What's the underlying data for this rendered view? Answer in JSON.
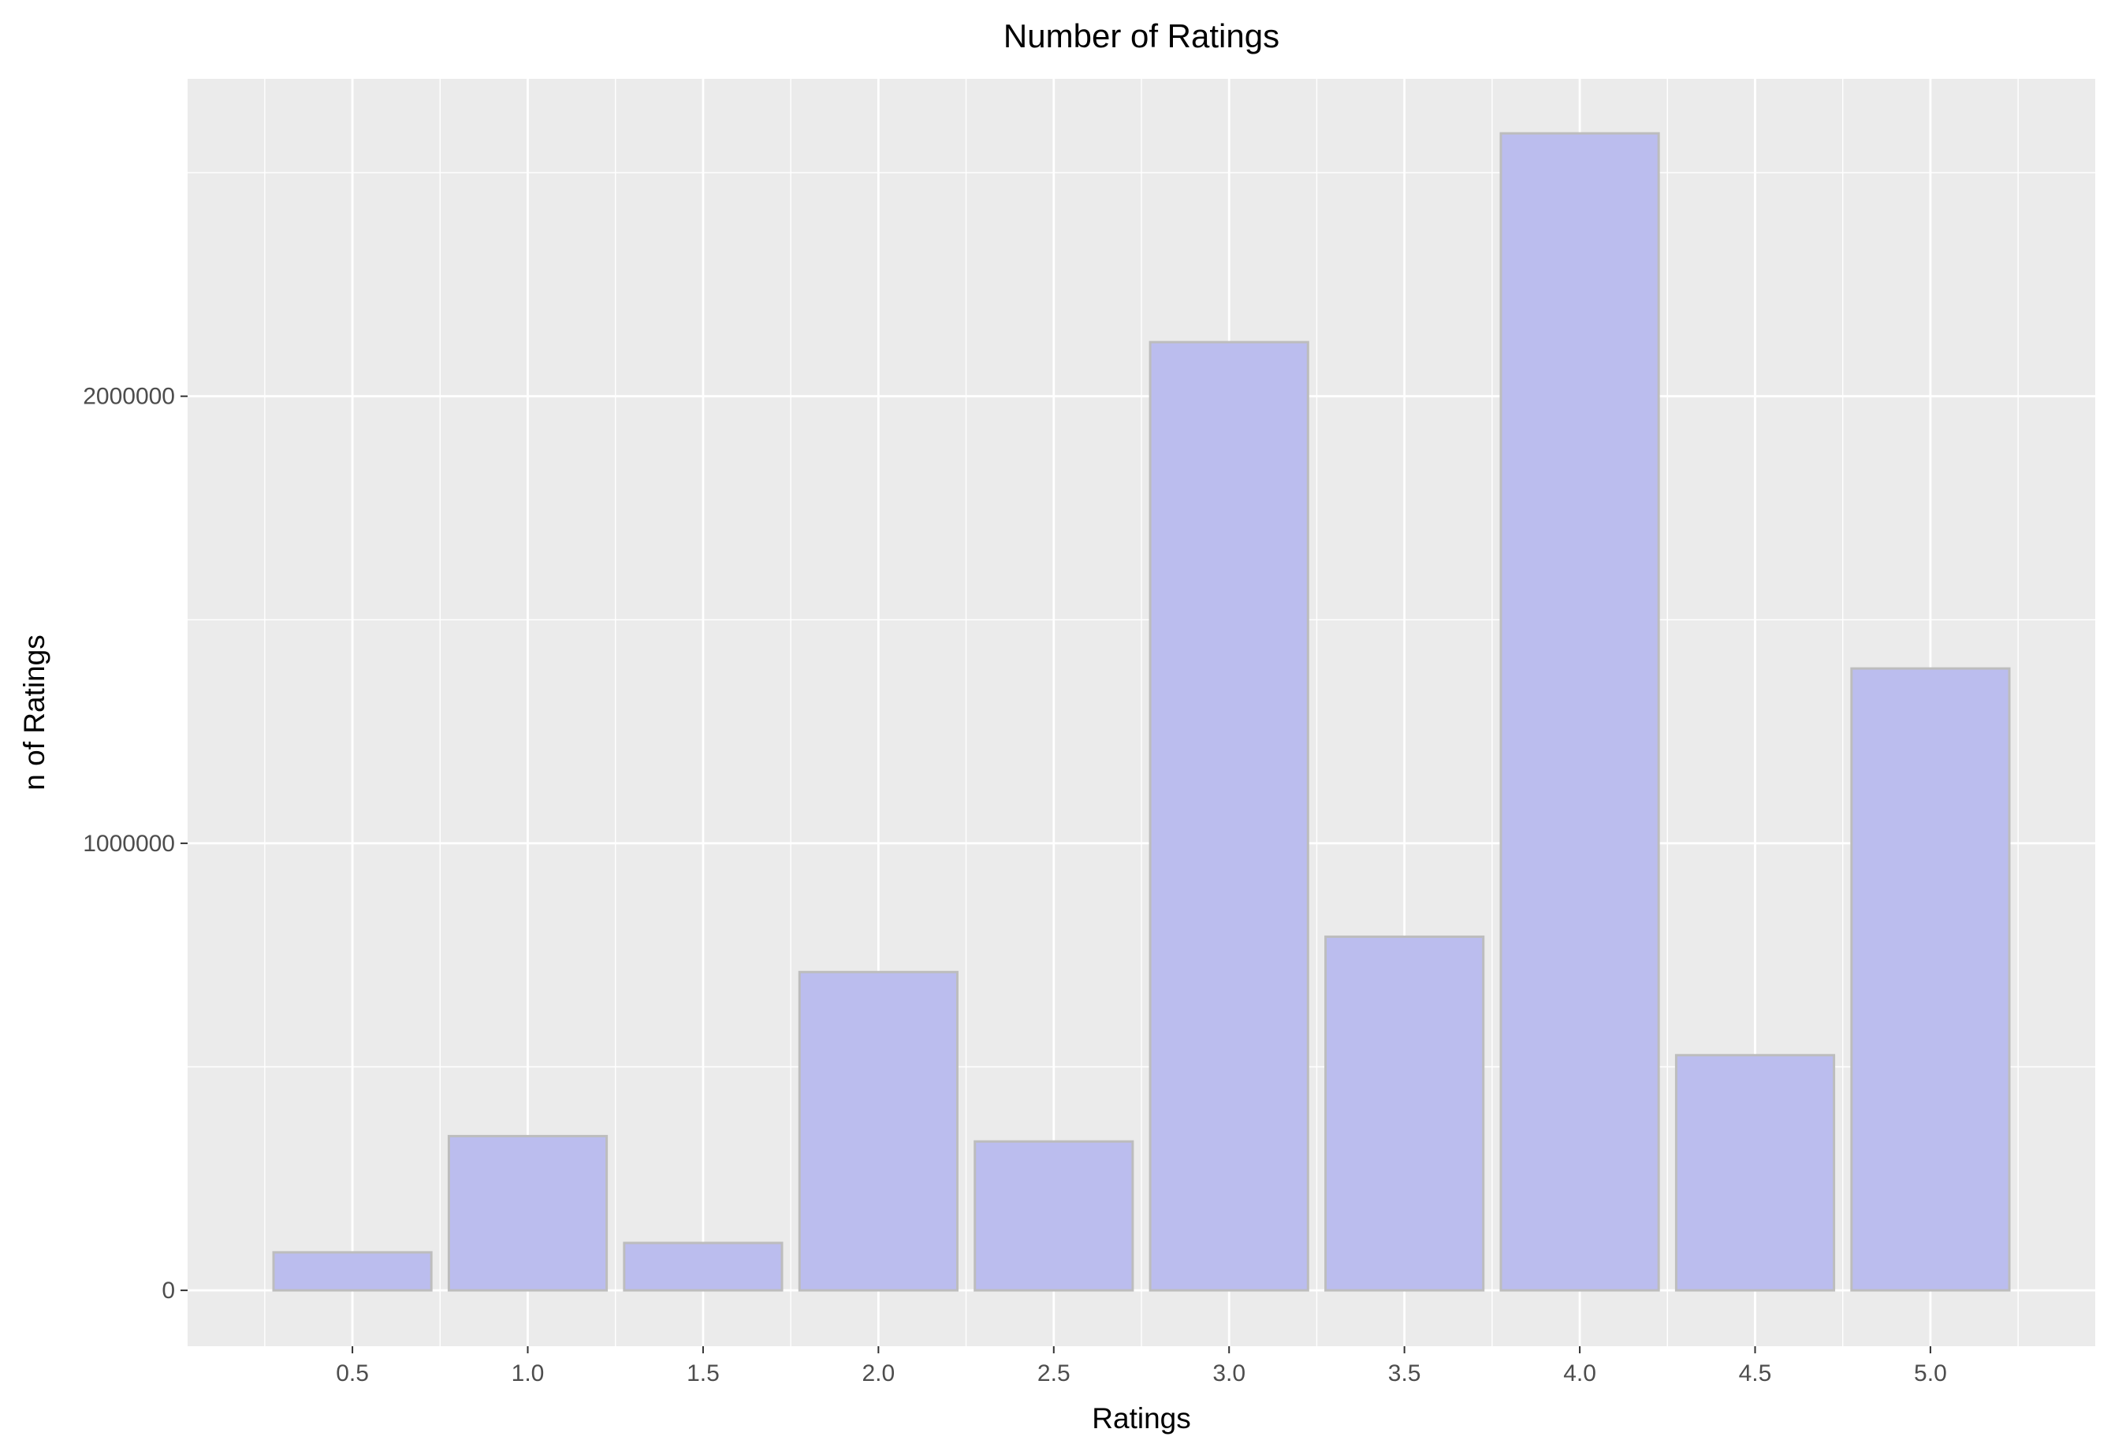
{
  "chart_data": {
    "type": "bar",
    "title": "Number of Ratings",
    "xlabel": "Ratings",
    "ylabel": "n of Ratings",
    "categories": [
      "0.5",
      "1.0",
      "1.5",
      "2.0",
      "2.5",
      "3.0",
      "3.5",
      "4.0",
      "4.5",
      "5.0"
    ],
    "values": [
      85000,
      345000,
      106000,
      712000,
      333000,
      2121000,
      791000,
      2588000,
      526000,
      1391000
    ],
    "y_ticks": [
      0,
      1000000,
      2000000
    ],
    "y_tick_labels": [
      "0",
      "1000000",
      "2000000"
    ],
    "ylim": [
      -125000,
      2710000
    ],
    "x_domain": [
      0.03,
      5.47
    ],
    "grid": true,
    "legend": "none",
    "bar_fill": "#bbbdee",
    "bar_stroke": "#bdbdbd",
    "panel_background": "#ebebeb",
    "grid_color": "#ffffff"
  }
}
